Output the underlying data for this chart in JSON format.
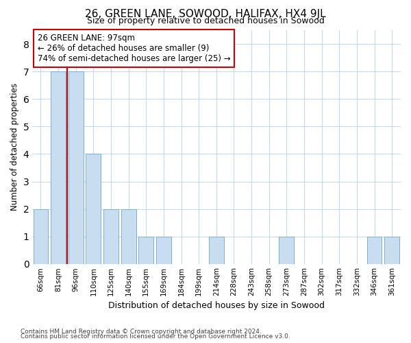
{
  "title": "26, GREEN LANE, SOWOOD, HALIFAX, HX4 9JL",
  "subtitle": "Size of property relative to detached houses in Sowood",
  "xlabel": "Distribution of detached houses by size in Sowood",
  "ylabel": "Number of detached properties",
  "categories": [
    "66sqm",
    "81sqm",
    "96sqm",
    "110sqm",
    "125sqm",
    "140sqm",
    "155sqm",
    "169sqm",
    "184sqm",
    "199sqm",
    "214sqm",
    "228sqm",
    "243sqm",
    "258sqm",
    "273sqm",
    "287sqm",
    "302sqm",
    "317sqm",
    "332sqm",
    "346sqm",
    "361sqm"
  ],
  "values": [
    2,
    7,
    7,
    4,
    2,
    2,
    1,
    1,
    0,
    0,
    1,
    0,
    0,
    0,
    1,
    0,
    0,
    0,
    0,
    1,
    1
  ],
  "bar_color": "#c9ddf0",
  "bar_edgecolor": "#7ab0d8",
  "vline_color": "#cc0000",
  "vline_pos": 1.5,
  "annotation_title": "26 GREEN LANE: 97sqm",
  "annotation_line1": "← 26% of detached houses are smaller (9)",
  "annotation_line2": "74% of semi-detached houses are larger (25) →",
  "annotation_box_edgecolor": "#cc0000",
  "ylim_max": 8.5,
  "yticks": [
    0,
    1,
    2,
    3,
    4,
    5,
    6,
    7,
    8
  ],
  "footnote1": "Contains HM Land Registry data © Crown copyright and database right 2024.",
  "footnote2": "Contains public sector information licensed under the Open Government Licence v3.0.",
  "bg_color": "#ffffff",
  "grid_color": "#c5d8ed"
}
